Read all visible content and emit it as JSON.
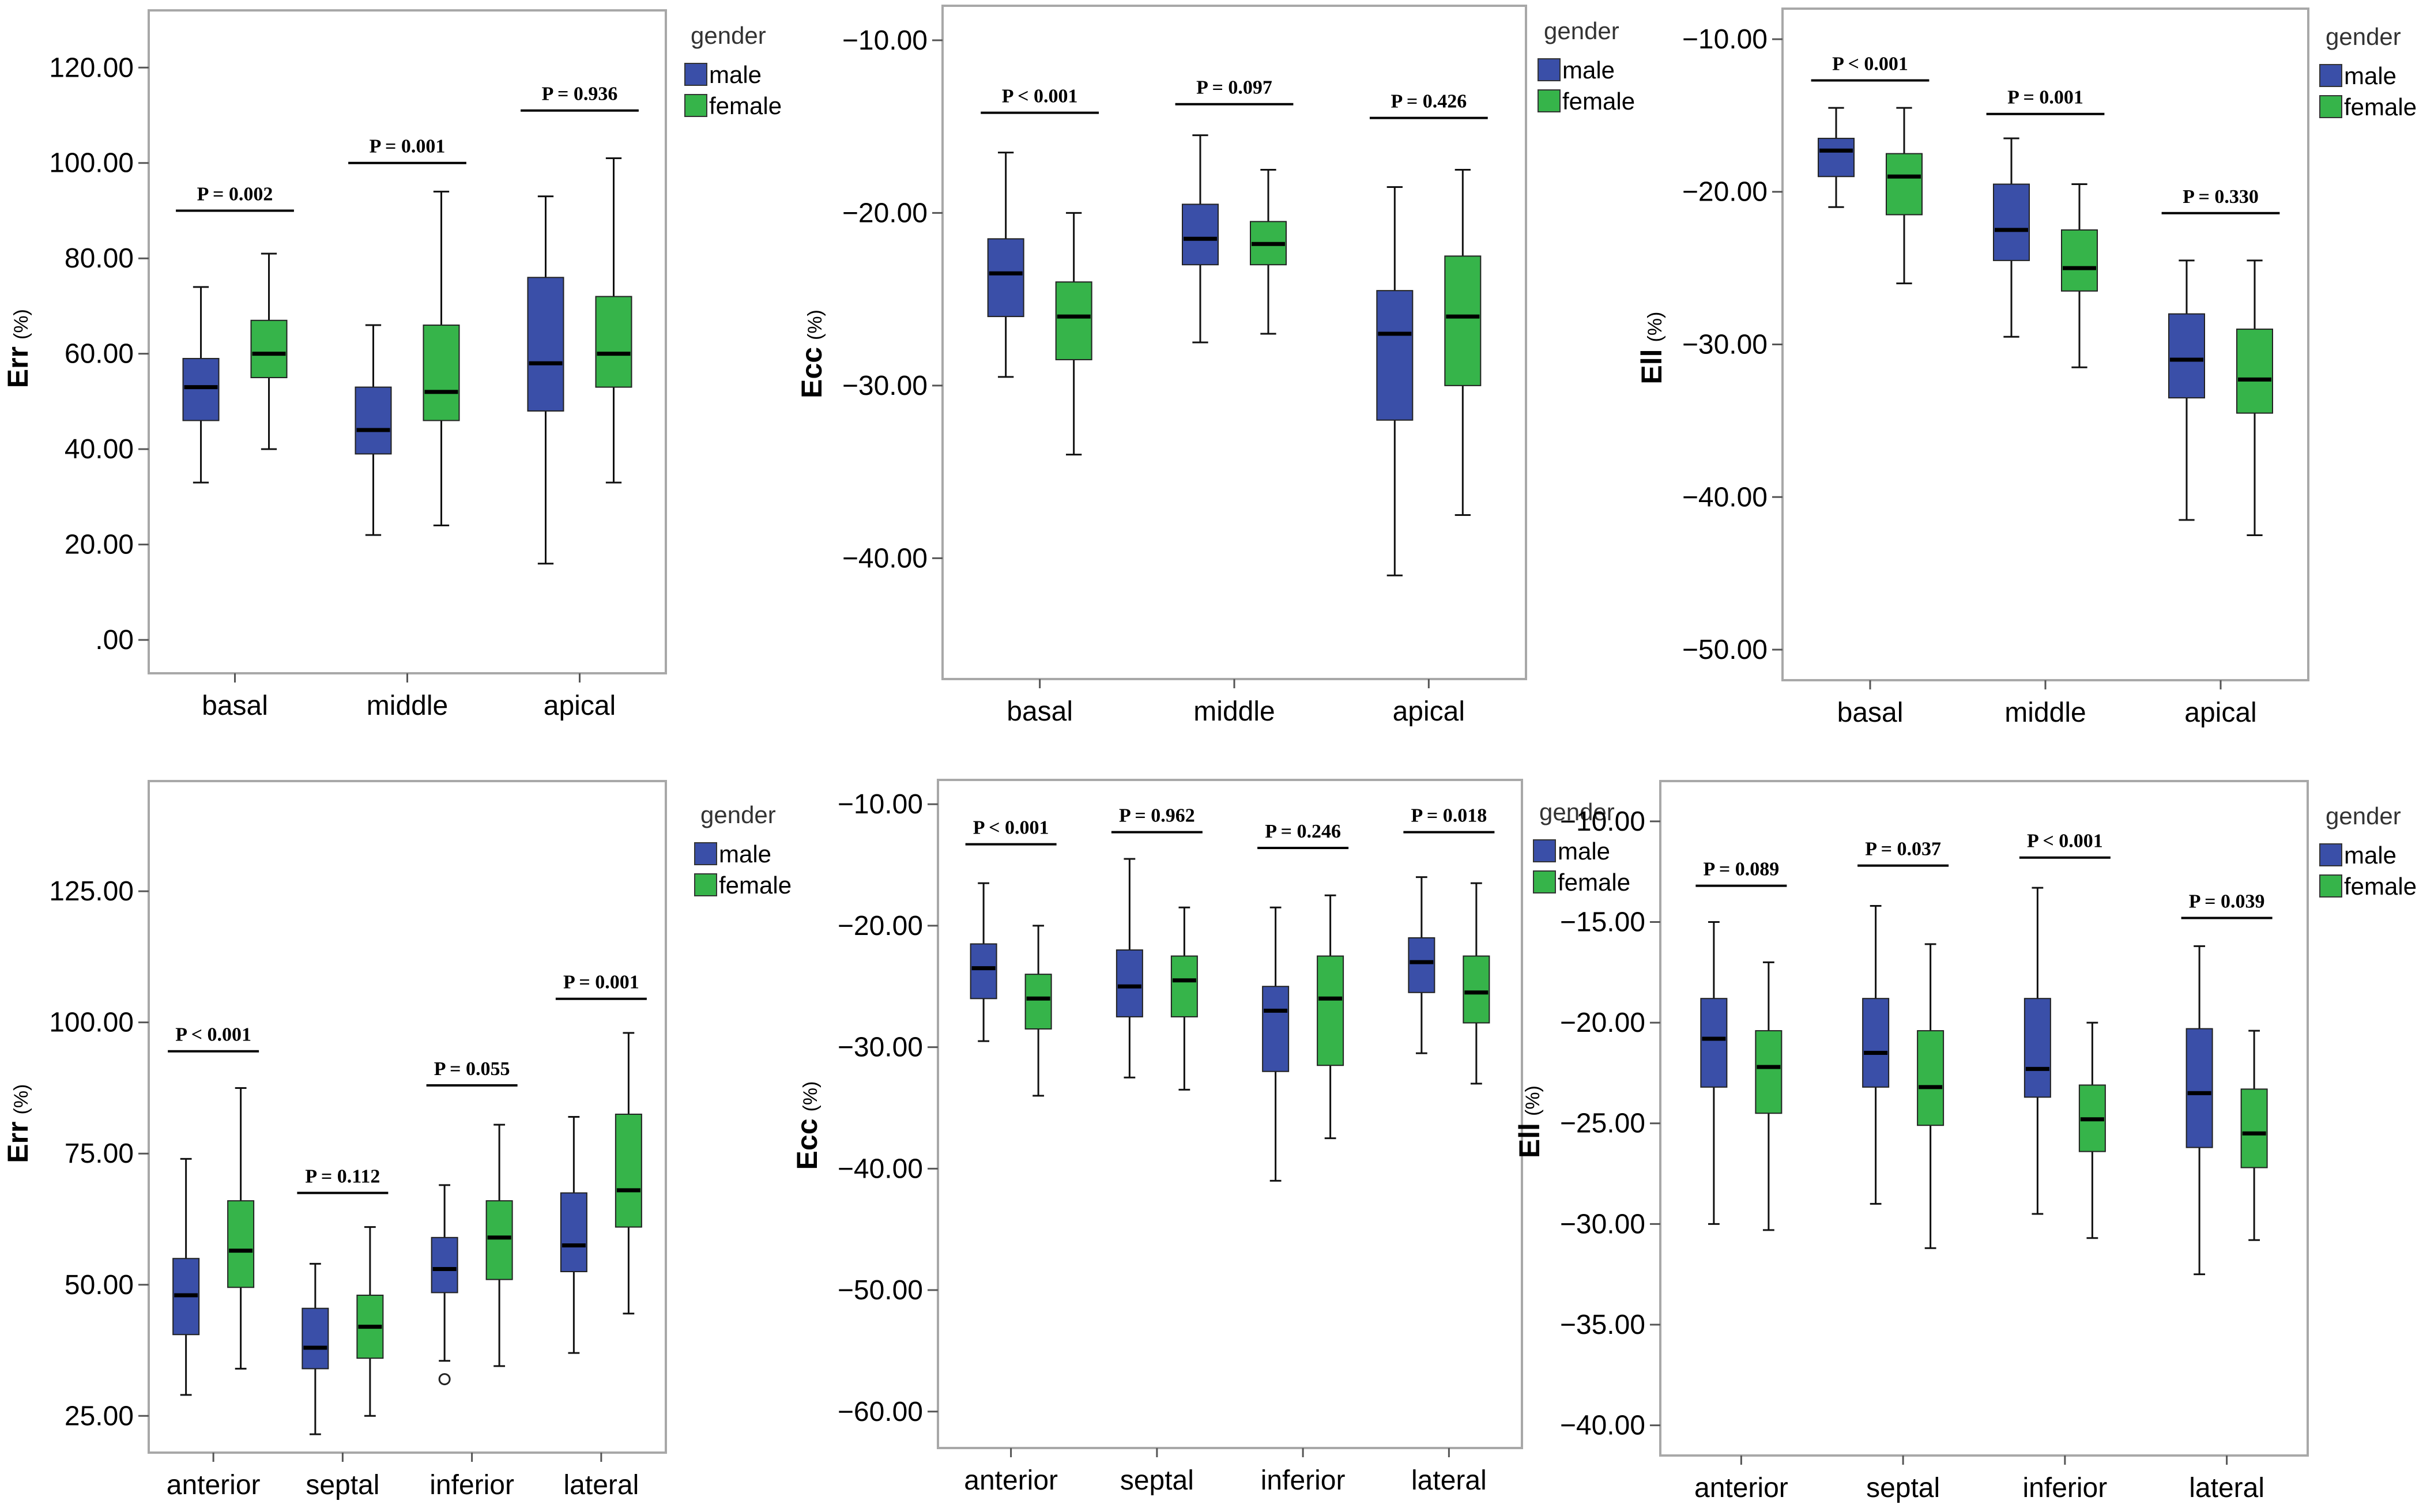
{
  "chart_data": [
    {
      "type": "boxplot",
      "ylabel": "Err",
      "yunit": "(%)",
      "ylim": [
        -7,
        132
      ],
      "yticks": [
        0,
        20,
        40,
        60,
        80,
        100,
        120
      ],
      "ytick_labels": [
        ".00",
        "20.00",
        "40.00",
        "60.00",
        "80.00",
        "100.00",
        "120.00"
      ],
      "categories": [
        "basal",
        "middle",
        "apical"
      ],
      "legend_title": "gender",
      "series": [
        {
          "name": "male",
          "boxes": [
            {
              "min": 33,
              "q1": 46,
              "median": 53,
              "q3": 59,
              "max": 74
            },
            {
              "min": 22,
              "q1": 39,
              "median": 44,
              "q3": 53,
              "max": 66
            },
            {
              "min": 16,
              "q1": 48,
              "median": 58,
              "q3": 76,
              "max": 93
            }
          ]
        },
        {
          "name": "female",
          "boxes": [
            {
              "min": 40,
              "q1": 55,
              "median": 60,
              "q3": 67,
              "max": 81
            },
            {
              "min": 24,
              "q1": 46,
              "median": 52,
              "q3": 66,
              "max": 94
            },
            {
              "min": 33,
              "q1": 53,
              "median": 60,
              "q3": 72,
              "max": 101
            }
          ]
        }
      ],
      "pvalues": [
        {
          "text": "P = 0.002",
          "y": 90
        },
        {
          "text": "P = 0.001",
          "y": 100
        },
        {
          "text": "P = 0.936",
          "y": 111
        }
      ]
    },
    {
      "type": "boxplot",
      "ylabel": "Ecc",
      "yunit": "(%)",
      "ylim": [
        -47,
        -8
      ],
      "yticks": [
        -10,
        -20,
        -30,
        -40
      ],
      "ytick_labels": [
        "−10.00",
        "−20.00",
        "−30.00",
        "−40.00"
      ],
      "categories": [
        "basal",
        "middle",
        "apical"
      ],
      "legend_title": "gender",
      "series": [
        {
          "name": "male",
          "boxes": [
            {
              "min": -29.5,
              "q1": -26,
              "median": -23.5,
              "q3": -21.5,
              "max": -16.5
            },
            {
              "min": -27.5,
              "q1": -23,
              "median": -21.5,
              "q3": -19.5,
              "max": -15.5
            },
            {
              "min": -41,
              "q1": -32,
              "median": -27,
              "q3": -24.5,
              "max": -18.5
            }
          ]
        },
        {
          "name": "female",
          "boxes": [
            {
              "min": -34,
              "q1": -28.5,
              "median": -26,
              "q3": -24,
              "max": -20
            },
            {
              "min": -27,
              "q1": -23,
              "median": -21.8,
              "q3": -20.5,
              "max": -17.5
            },
            {
              "min": -37.5,
              "q1": -30,
              "median": -26,
              "q3": -22.5,
              "max": -17.5
            }
          ]
        }
      ],
      "pvalues": [
        {
          "text": "P < 0.001",
          "y": -14.2
        },
        {
          "text": "P = 0.097",
          "y": -13.7
        },
        {
          "text": "P = 0.426",
          "y": -14.5
        }
      ]
    },
    {
      "type": "boxplot",
      "ylabel": "Ell",
      "yunit": "(%)",
      "ylim": [
        -52,
        -8
      ],
      "yticks": [
        -10,
        -20,
        -30,
        -40,
        -50
      ],
      "ytick_labels": [
        "−10.00",
        "−20.00",
        "−30.00",
        "−40.00",
        "−50.00"
      ],
      "categories": [
        "basal",
        "middle",
        "apical"
      ],
      "legend_title": "gender",
      "series": [
        {
          "name": "male",
          "boxes": [
            {
              "min": -21,
              "q1": -19,
              "median": -17.3,
              "q3": -16.5,
              "max": -14.5
            },
            {
              "min": -29.5,
              "q1": -24.5,
              "median": -22.5,
              "q3": -19.5,
              "max": -16.5
            },
            {
              "min": -41.5,
              "q1": -33.5,
              "median": -31,
              "q3": -28,
              "max": -24.5
            }
          ]
        },
        {
          "name": "female",
          "boxes": [
            {
              "min": -26,
              "q1": -21.5,
              "median": -19,
              "q3": -17.5,
              "max": -14.5
            },
            {
              "min": -31.5,
              "q1": -26.5,
              "median": -25,
              "q3": -22.5,
              "max": -19.5
            },
            {
              "min": -42.5,
              "q1": -34.5,
              "median": -32.3,
              "q3": -29,
              "max": -24.5
            }
          ]
        }
      ],
      "pvalues": [
        {
          "text": "P < 0.001",
          "y": -12.7
        },
        {
          "text": "P = 0.001",
          "y": -14.9
        },
        {
          "text": "P = 0.330",
          "y": -21.4
        }
      ]
    },
    {
      "type": "boxplot",
      "ylabel": "Err",
      "yunit": "(%)",
      "ylim": [
        18,
        146
      ],
      "yticks": [
        25,
        50,
        75,
        100,
        125
      ],
      "ytick_labels": [
        "25.00",
        "50.00",
        "75.00",
        "100.00",
        "125.00"
      ],
      "categories": [
        "anterior",
        "septal",
        "inferior",
        "lateral"
      ],
      "legend_title": "gender",
      "series": [
        {
          "name": "male",
          "boxes": [
            {
              "min": 29,
              "q1": 40.5,
              "median": 48,
              "q3": 55,
              "max": 74
            },
            {
              "min": 21.5,
              "q1": 34,
              "median": 38,
              "q3": 45.5,
              "max": 54
            },
            {
              "min": 35.5,
              "q1": 48.5,
              "median": 53,
              "q3": 59,
              "max": 69,
              "outliers": [
                32
              ]
            },
            {
              "min": 37,
              "q1": 52.5,
              "median": 57.5,
              "q3": 67.5,
              "max": 82
            }
          ]
        },
        {
          "name": "female",
          "boxes": [
            {
              "min": 34,
              "q1": 49.5,
              "median": 56.5,
              "q3": 66,
              "max": 87.5
            },
            {
              "min": 25,
              "q1": 36,
              "median": 42,
              "q3": 48,
              "max": 61
            },
            {
              "min": 34.5,
              "q1": 51,
              "median": 59,
              "q3": 66,
              "max": 80.5
            },
            {
              "min": 44.5,
              "q1": 61,
              "median": 68,
              "q3": 82.5,
              "max": 98
            }
          ]
        }
      ],
      "pvalues": [
        {
          "text": "P < 0.001",
          "y": 94.5
        },
        {
          "text": "P = 0.112",
          "y": 67.5
        },
        {
          "text": "P = 0.055",
          "y": 88
        },
        {
          "text": "P = 0.001",
          "y": 104.5
        }
      ]
    },
    {
      "type": "boxplot",
      "ylabel": "Ecc",
      "yunit": "(%)",
      "ylim": [
        -63,
        -8
      ],
      "yticks": [
        -10,
        -20,
        -30,
        -40,
        -50,
        -60
      ],
      "ytick_labels": [
        "−10.00",
        "−20.00",
        "−30.00",
        "−40.00",
        "−50.00",
        "−60.00"
      ],
      "categories": [
        "anterior",
        "septal",
        "inferior",
        "lateral"
      ],
      "legend_title": "gender",
      "series": [
        {
          "name": "male",
          "boxes": [
            {
              "min": -29.5,
              "q1": -26,
              "median": -23.5,
              "q3": -21.5,
              "max": -16.5
            },
            {
              "min": -32.5,
              "q1": -27.5,
              "median": -25,
              "q3": -22,
              "max": -14.5
            },
            {
              "min": -41,
              "q1": -32,
              "median": -27,
              "q3": -25,
              "max": -18.5
            },
            {
              "min": -30.5,
              "q1": -25.5,
              "median": -23,
              "q3": -21,
              "max": -16
            }
          ]
        },
        {
          "name": "female",
          "boxes": [
            {
              "min": -34,
              "q1": -28.5,
              "median": -26,
              "q3": -24,
              "max": -20
            },
            {
              "min": -33.5,
              "q1": -27.5,
              "median": -24.5,
              "q3": -22.5,
              "max": -18.5
            },
            {
              "min": -37.5,
              "q1": -31.5,
              "median": -26,
              "q3": -22.5,
              "max": -17.5
            },
            {
              "min": -33,
              "q1": -28,
              "median": -25.5,
              "q3": -22.5,
              "max": -16.5
            }
          ]
        }
      ],
      "pvalues": [
        {
          "text": "P < 0.001",
          "y": -13.3
        },
        {
          "text": "P = 0.962",
          "y": -12.3
        },
        {
          "text": "P = 0.246",
          "y": -13.6
        },
        {
          "text": "P = 0.018",
          "y": -12.3
        }
      ]
    },
    {
      "type": "boxplot",
      "ylabel": "Ell",
      "yunit": "(%)",
      "ylim": [
        -41.5,
        -8
      ],
      "yticks": [
        -10,
        -15,
        -20,
        -25,
        -30,
        -35,
        -40
      ],
      "ytick_labels": [
        "−10.00",
        "−15.00",
        "−20.00",
        "−25.00",
        "−30.00",
        "−35.00",
        "−40.00"
      ],
      "categories": [
        "anterior",
        "septal",
        "inferior",
        "lateral"
      ],
      "legend_title": "gender",
      "series": [
        {
          "name": "male",
          "boxes": [
            {
              "min": -30,
              "q1": -23.2,
              "median": -20.8,
              "q3": -18.8,
              "max": -15
            },
            {
              "min": -29,
              "q1": -23.2,
              "median": -21.5,
              "q3": -18.8,
              "max": -14.2
            },
            {
              "min": -29.5,
              "q1": -23.7,
              "median": -22.3,
              "q3": -18.8,
              "max": -13.3
            },
            {
              "min": -32.5,
              "q1": -26.2,
              "median": -23.5,
              "q3": -20.3,
              "max": -16.2
            }
          ]
        },
        {
          "name": "female",
          "boxes": [
            {
              "min": -30.3,
              "q1": -24.5,
              "median": -22.2,
              "q3": -20.4,
              "max": -17
            },
            {
              "min": -31.2,
              "q1": -25.1,
              "median": -23.2,
              "q3": -20.4,
              "max": -16.1
            },
            {
              "min": -30.7,
              "q1": -26.4,
              "median": -24.8,
              "q3": -23.1,
              "max": -20
            },
            {
              "min": -30.8,
              "q1": -27.2,
              "median": -25.5,
              "q3": -23.3,
              "max": -20.4
            }
          ]
        }
      ],
      "pvalues": [
        {
          "text": "P = 0.089",
          "y": -13.2
        },
        {
          "text": "P = 0.037",
          "y": -12.2
        },
        {
          "text": "P < 0.001",
          "y": -11.8
        },
        {
          "text": "P = 0.039",
          "y": -14.8
        }
      ]
    }
  ],
  "colors": {
    "male": "#3a4fa8",
    "female": "#36b44a",
    "frame": "#a8a8a8"
  }
}
